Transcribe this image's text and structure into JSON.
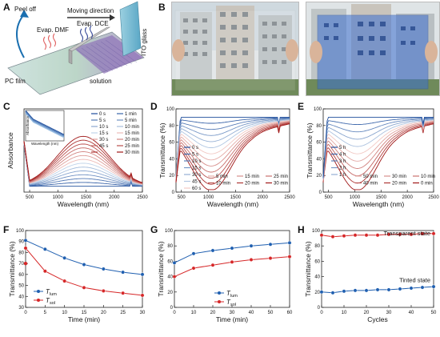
{
  "panelA": {
    "label": "A",
    "texts": {
      "peel": "Peel off",
      "moving": "Moving direction",
      "dmf": "Evap. DMF",
      "dce": "Evap. DCE",
      "pc": "PC film",
      "solution": "solution",
      "ito": "ITO glass"
    }
  },
  "panelB": {
    "label": "B"
  },
  "panels": [
    {
      "id": "C",
      "label": "C",
      "xlabel": "Wavelength (nm)",
      "ylabel": "Absorbance",
      "xlim": [
        400,
        2500
      ],
      "xticks": [
        500,
        1000,
        1500,
        2000,
        2500
      ],
      "legend": [
        "0 s",
        "1 min",
        "5 s",
        "5 min",
        "10 s",
        "10 min",
        "15 s",
        "15 min",
        "30 s",
        "20 min",
        "45 s",
        "25 min",
        "",
        "30 min"
      ],
      "inset": {
        "xlabel": "Wavelength (nm)",
        "ylabel": "Absorbance"
      }
    },
    {
      "id": "D",
      "label": "D",
      "xlabel": "Wavelength (nm)",
      "ylabel": "Transmittance (%)",
      "ylim": [
        0,
        100
      ],
      "yticks": [
        0,
        20,
        40,
        60,
        80,
        100
      ],
      "xlim": [
        400,
        2500
      ],
      "xticks": [
        500,
        1000,
        1500,
        2000,
        2500
      ],
      "legend_col1": [
        "0 s",
        "5 s",
        "10 s",
        "15 s",
        "30 s",
        "45 s",
        "60 s"
      ],
      "legend_rest": [
        "5 min",
        "15 min",
        "25 min",
        "10 min",
        "20 min",
        "30 min"
      ]
    },
    {
      "id": "E",
      "label": "E",
      "xlabel": "Wavelength (nm)",
      "ylabel": "Transmittance (%)",
      "ylim": [
        0,
        100
      ],
      "yticks": [
        0,
        20,
        40,
        60,
        80,
        100
      ],
      "xlim": [
        400,
        2500
      ],
      "xticks": [
        500,
        1000,
        1500,
        2000,
        2500
      ],
      "legend_col1": [
        "5 h",
        "4 h",
        "3 h",
        "2 h",
        "1 h"
      ],
      "legend_rest": [
        "50 min",
        "30 min",
        "10 min",
        "40 min",
        "20 min",
        "0 min"
      ]
    }
  ],
  "chart_data": [
    {
      "type": "line",
      "panel": "F",
      "xlabel": "Time (min)",
      "ylabel": "Transmittance (%)",
      "xlim": [
        0,
        30
      ],
      "ylim": [
        30,
        100
      ],
      "xticks": [
        0,
        5,
        10,
        15,
        20,
        25,
        30
      ],
      "yticks": [
        30,
        40,
        50,
        60,
        70,
        80,
        90,
        100
      ],
      "x": [
        0,
        5,
        10,
        15,
        20,
        25,
        30
      ],
      "series": [
        {
          "name": "T_lum",
          "values": [
            91,
            83,
            75,
            69,
            65,
            62,
            60
          ],
          "color": "#1f5fb0"
        },
        {
          "name": "T_sol",
          "values": [
            84,
            63,
            54,
            48,
            45,
            43,
            41
          ],
          "color": "#d62728"
        }
      ],
      "extra_first_points": {
        "T_lum": 90,
        "T_sol": 70
      }
    },
    {
      "type": "line",
      "panel": "G",
      "xlabel": "Time (min)",
      "ylabel": "Transmittance (%)",
      "xlim": [
        0,
        60
      ],
      "ylim": [
        0,
        100
      ],
      "xticks": [
        0,
        10,
        20,
        30,
        40,
        50,
        60
      ],
      "yticks": [
        0,
        20,
        40,
        60,
        80,
        100
      ],
      "x": [
        0,
        10,
        20,
        30,
        40,
        50,
        60
      ],
      "series": [
        {
          "name": "T_lum",
          "values": [
            58,
            70,
            74,
            77,
            80,
            82,
            84
          ],
          "color": "#1f5fb0"
        },
        {
          "name": "T_sol",
          "values": [
            40,
            51,
            55,
            59,
            62,
            64,
            66
          ],
          "color": "#d62728"
        }
      ]
    },
    {
      "type": "line",
      "panel": "H",
      "xlabel": "Cycles",
      "ylabel": "Transmittance (%)",
      "xlim": [
        0,
        50
      ],
      "ylim": [
        0,
        100
      ],
      "xticks": [
        0,
        10,
        20,
        30,
        40,
        50
      ],
      "yticks": [
        0,
        20,
        40,
        60,
        80,
        100
      ],
      "annotations": [
        "Transparent state",
        "Tinted state"
      ],
      "x": [
        0,
        5,
        10,
        15,
        20,
        25,
        30,
        35,
        40,
        45,
        50
      ],
      "series": [
        {
          "name": "Transparent state",
          "values": [
            94,
            92,
            93,
            94,
            94,
            94,
            95,
            95,
            95,
            96,
            96
          ],
          "color": "#d62728"
        },
        {
          "name": "Tinted state",
          "values": [
            20,
            19,
            21,
            22,
            22,
            23,
            23,
            24,
            25,
            26,
            27
          ],
          "color": "#1f5fb0"
        }
      ]
    }
  ]
}
